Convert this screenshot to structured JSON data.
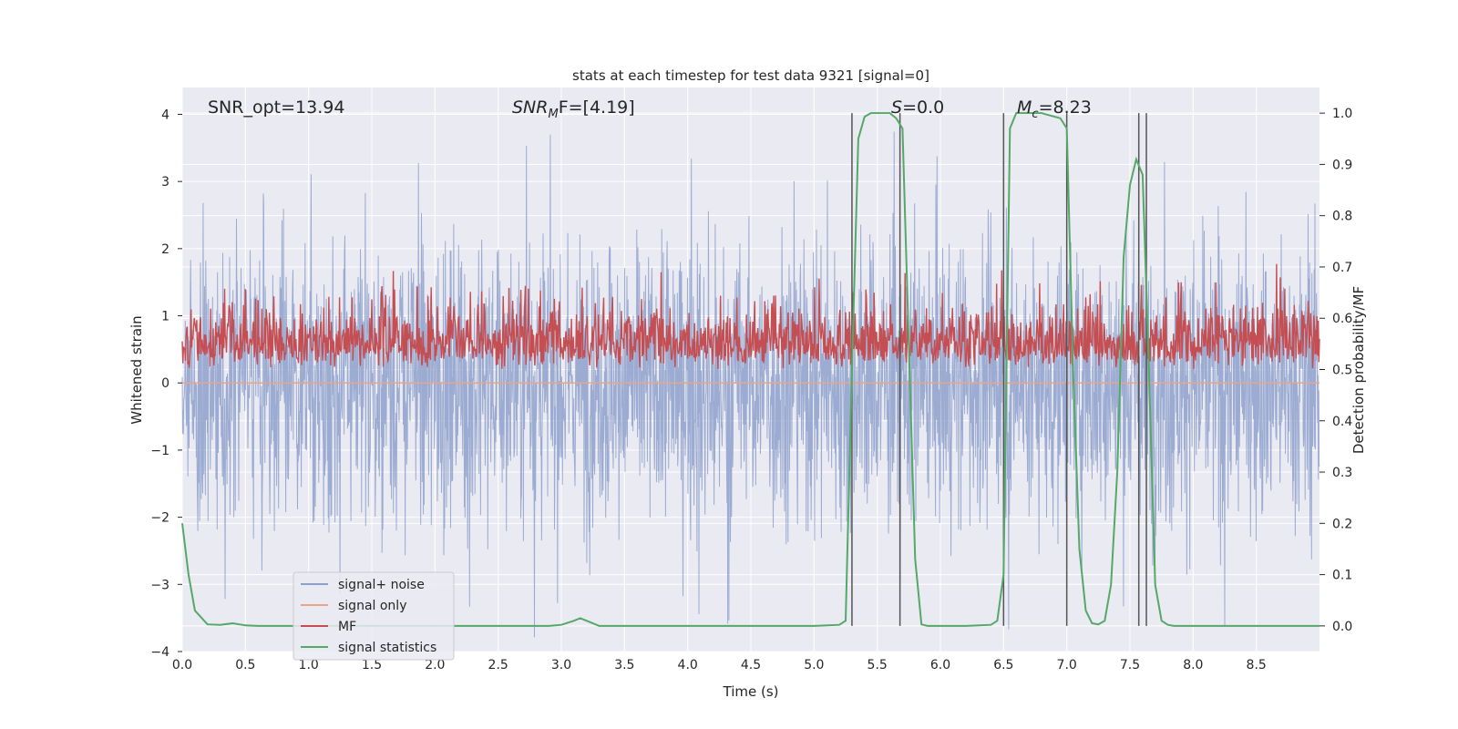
{
  "chart_data": {
    "type": "line",
    "title": "stats at each timestep for test data 9321 [signal=0]",
    "xlabel": "Time (s)",
    "ylabel": "Whitened strain",
    "ylabel_right": "Detection probability/MF",
    "xlim": [
      0.0,
      9.0
    ],
    "ylim": [
      -4.0,
      4.4
    ],
    "ylim_right": [
      -0.05,
      1.05
    ],
    "grid": true,
    "x_ticks": [
      "0.0",
      "0.5",
      "1.0",
      "1.5",
      "2.0",
      "2.5",
      "3.0",
      "3.5",
      "4.0",
      "4.5",
      "5.0",
      "5.5",
      "6.0",
      "6.5",
      "7.0",
      "7.5",
      "8.0",
      "8.5"
    ],
    "y_ticks": [
      "−4",
      "−3",
      "−2",
      "−1",
      "0",
      "1",
      "2",
      "3",
      "4"
    ],
    "y_ticks_right": [
      "0.0",
      "0.1",
      "0.2",
      "0.3",
      "0.4",
      "0.5",
      "0.6",
      "0.7",
      "0.8",
      "0.9",
      "1.0"
    ],
    "annotations": {
      "snr_opt": "SNR_opt=13.94",
      "snr_mf_label": "SNR",
      "snr_mf_sub": "M",
      "snr_mf_rest": "F=[4.19]",
      "s_var": "S",
      "s_rest": "=0.0",
      "mc_var": "M",
      "mc_sub": "c",
      "mc_rest": "=8.23"
    },
    "legend_position": "lower-left",
    "series": [
      {
        "name": "signal+ noise",
        "color": "#8da0cb",
        "description": "whitened strain noise, approx. symmetric about 0, envelope about ±2.5 with peaks to ±4"
      },
      {
        "name": "signal only",
        "color": "#e8a589",
        "values_approx": 0.0
      },
      {
        "name": "MF",
        "color": "#c44e52",
        "description": "matched filter output on right axis, about 0.5 to 0.75"
      },
      {
        "name": "signal statistics",
        "color": "#55a868",
        "x": [
          0.0,
          0.05,
          0.1,
          0.2,
          0.3,
          0.4,
          0.5,
          0.6,
          0.8,
          1.0,
          1.5,
          2.0,
          2.5,
          2.9,
          3.0,
          3.1,
          3.15,
          3.2,
          3.3,
          3.5,
          4.0,
          4.5,
          5.0,
          5.2,
          5.25,
          5.3,
          5.35,
          5.4,
          5.45,
          5.5,
          5.6,
          5.65,
          5.7,
          5.75,
          5.8,
          5.85,
          5.9,
          6.2,
          6.4,
          6.45,
          6.5,
          6.55,
          6.6,
          6.7,
          6.8,
          6.95,
          7.0,
          7.05,
          7.1,
          7.15,
          7.2,
          7.25,
          7.3,
          7.35,
          7.4,
          7.45,
          7.5,
          7.55,
          7.6,
          7.65,
          7.7,
          7.75,
          7.8,
          7.85,
          7.9,
          8.0,
          8.5,
          9.0
        ],
        "values": [
          0.2,
          0.1,
          0.03,
          0.003,
          0.002,
          0.005,
          0.001,
          0.0,
          0.0,
          0.0,
          0.0,
          0.0,
          0.0,
          0.0,
          0.002,
          0.01,
          0.015,
          0.01,
          0.0,
          0.0,
          0.0,
          0.0,
          0.0,
          0.002,
          0.01,
          0.5,
          0.95,
          0.993,
          1.0,
          1.0,
          1.0,
          0.99,
          0.97,
          0.55,
          0.13,
          0.003,
          0.0,
          0.0,
          0.002,
          0.01,
          0.1,
          0.97,
          1.0,
          1.0,
          1.0,
          0.99,
          0.97,
          0.5,
          0.15,
          0.03,
          0.005,
          0.003,
          0.01,
          0.08,
          0.3,
          0.72,
          0.86,
          0.91,
          0.88,
          0.5,
          0.08,
          0.01,
          0.002,
          0.0,
          0.0,
          0.0,
          0.0,
          0.0
        ]
      }
    ],
    "vertical_lines_x": [
      5.3,
      5.68,
      6.5,
      7.0,
      7.57,
      7.63
    ]
  }
}
